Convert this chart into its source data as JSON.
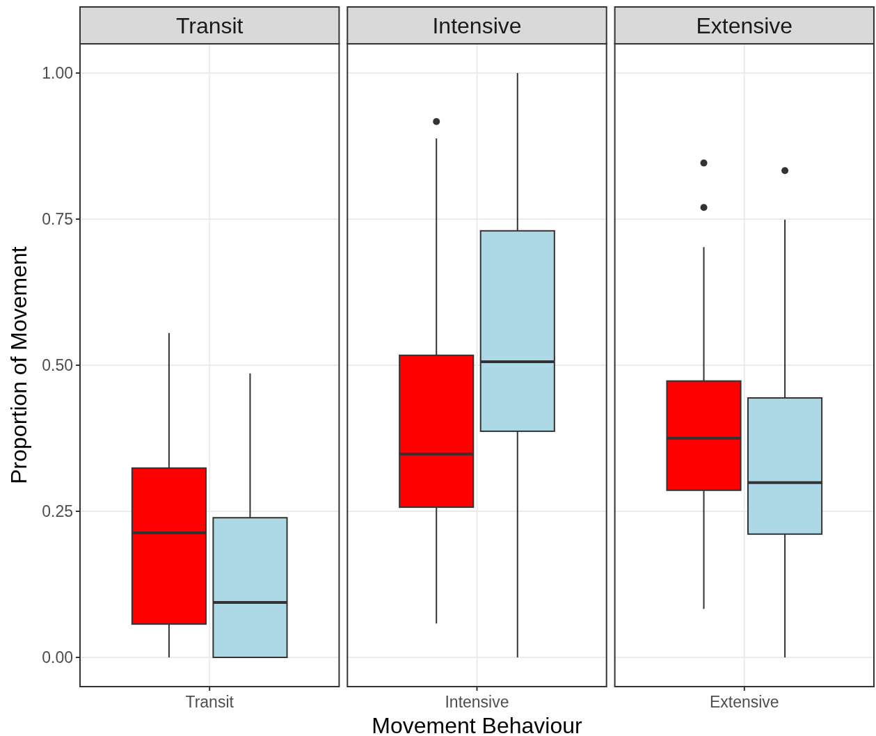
{
  "chart_data": {
    "type": "box",
    "xlabel": "Movement Behaviour",
    "ylabel": "Proportion of Movement",
    "categories": [
      "Transit",
      "Intensive",
      "Extensive"
    ],
    "annotations": [
      "Transit",
      "Intensive",
      "Extensive"
    ],
    "ylim": [
      -0.05,
      1.05
    ],
    "yticks": [
      {
        "value": 0,
        "label": "0.00"
      },
      {
        "value": 0.25,
        "label": "0.25"
      },
      {
        "value": 0.5,
        "label": "0.50"
      },
      {
        "value": 0.75,
        "label": "0.75"
      },
      {
        "value": 1,
        "label": "1.00"
      }
    ],
    "grid": true,
    "series": [
      {
        "color": "#ff0000",
        "boxes": [
          {
            "low": 0,
            "q1": 0.057,
            "median": 0.213,
            "q3": 0.324,
            "high": 0.555
          },
          {
            "low": 0.058,
            "q1": 0.257,
            "median": 0.348,
            "q3": 0.517,
            "high": 0.888,
            "outliers": [
              0.917
            ]
          },
          {
            "low": 0.083,
            "q1": 0.286,
            "median": 0.375,
            "q3": 0.473,
            "high": 0.702,
            "outliers": [
              0.846,
              0.77
            ]
          }
        ]
      },
      {
        "color": "#add8e6",
        "boxes": [
          {
            "low": 0,
            "q1": 0,
            "median": 0.094,
            "q3": 0.239,
            "high": 0.486
          },
          {
            "low": 0,
            "q1": 0.387,
            "median": 0.506,
            "q3": 0.73,
            "high": 1.0
          },
          {
            "low": 0,
            "q1": 0.211,
            "median": 0.299,
            "q3": 0.444,
            "high": 0.749,
            "outliers": [
              0.833
            ]
          }
        ]
      }
    ]
  }
}
